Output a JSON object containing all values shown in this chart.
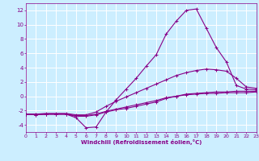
{
  "xlabel": "Windchill (Refroidissement éolien,°C)",
  "background_color": "#cceeff",
  "grid_color": "#ffffff",
  "line_color": "#880088",
  "xlim": [
    0,
    23
  ],
  "ylim": [
    -5,
    13
  ],
  "xticks": [
    0,
    1,
    2,
    3,
    4,
    5,
    6,
    7,
    8,
    9,
    10,
    11,
    12,
    13,
    14,
    15,
    16,
    17,
    18,
    19,
    20,
    21,
    22,
    23
  ],
  "yticks": [
    -4,
    -2,
    0,
    2,
    4,
    6,
    8,
    10,
    12
  ],
  "series": [
    [
      0,
      1,
      2,
      3,
      4,
      5,
      6,
      7,
      8,
      9,
      10,
      11,
      12,
      13,
      14,
      15,
      16,
      17,
      18,
      19,
      20,
      21,
      22,
      23
    ],
    [
      -2.5,
      -2.6,
      -2.5,
      -2.5,
      -2.5,
      -3.0,
      -4.4,
      -4.3,
      -2.2,
      -0.5,
      1.0,
      2.5,
      4.2,
      5.8,
      8.7,
      10.5,
      12.0,
      12.2,
      9.5,
      6.8,
      4.8,
      1.5,
      1.0,
      0.9
    ],
    [
      -2.5,
      -2.5,
      -2.4,
      -2.4,
      -2.4,
      -2.6,
      -2.6,
      -2.2,
      -1.4,
      -0.7,
      -0.1,
      0.5,
      1.1,
      1.7,
      2.3,
      2.9,
      3.3,
      3.6,
      3.8,
      3.7,
      3.5,
      2.5,
      1.3,
      1.1
    ],
    [
      -2.5,
      -2.5,
      -2.5,
      -2.5,
      -2.5,
      -2.7,
      -2.7,
      -2.5,
      -2.1,
      -1.8,
      -1.5,
      -1.2,
      -0.9,
      -0.6,
      -0.2,
      0.0,
      0.3,
      0.4,
      0.5,
      0.6,
      0.6,
      0.7,
      0.7,
      0.7
    ],
    [
      -2.5,
      -2.6,
      -2.5,
      -2.5,
      -2.5,
      -2.8,
      -2.8,
      -2.6,
      -2.2,
      -1.9,
      -1.7,
      -1.4,
      -1.1,
      -0.8,
      -0.3,
      0.0,
      0.2,
      0.3,
      0.4,
      0.4,
      0.5,
      0.5,
      0.5,
      0.6
    ]
  ]
}
